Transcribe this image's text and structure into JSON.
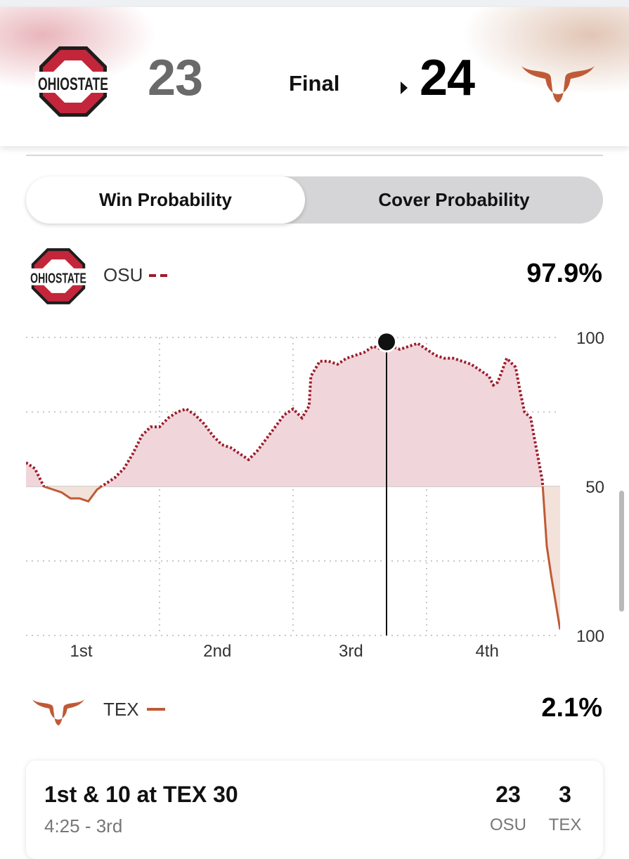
{
  "game": {
    "home": {
      "abbr": "OSU",
      "score": "23"
    },
    "away": {
      "abbr": "TEX",
      "score": "24"
    },
    "status": "Final"
  },
  "tabs": {
    "active": "Win Probability",
    "inactive": "Cover Probability"
  },
  "legend": {
    "top": {
      "abbr": "OSU",
      "pct": "97.9%",
      "color": "#9c1c2c"
    },
    "bottom": {
      "abbr": "TEX",
      "pct": "2.1%",
      "color": "#bf5a36"
    }
  },
  "chart_data": {
    "type": "line",
    "ylabels": [
      "100",
      "50",
      "100"
    ],
    "xlabels": [
      "1st",
      "2nd",
      "3rd",
      "4th"
    ],
    "ylim": [
      0,
      100
    ],
    "grid": true,
    "series": [
      {
        "name": "OSU",
        "values": [
          [
            0,
            58
          ],
          [
            1,
            56
          ],
          [
            2,
            50
          ],
          [
            3,
            49
          ],
          [
            4,
            48
          ],
          [
            5,
            46
          ],
          [
            6,
            46
          ],
          [
            7,
            45
          ],
          [
            8,
            49
          ],
          [
            9,
            51
          ],
          [
            10,
            53
          ],
          [
            11,
            56
          ],
          [
            12,
            61
          ],
          [
            13,
            67
          ],
          [
            14,
            70
          ],
          [
            15,
            70
          ],
          [
            16,
            73
          ],
          [
            17,
            75
          ],
          [
            18,
            76
          ],
          [
            19,
            74
          ],
          [
            20,
            71
          ],
          [
            21,
            67
          ],
          [
            22,
            64
          ],
          [
            23,
            63
          ],
          [
            24,
            61
          ],
          [
            25,
            59
          ],
          [
            26,
            62
          ],
          [
            27,
            66
          ],
          [
            28,
            70
          ],
          [
            29,
            74
          ],
          [
            30,
            76
          ],
          [
            31,
            73
          ],
          [
            31.8,
            77
          ],
          [
            32,
            87
          ],
          [
            33,
            92
          ],
          [
            34,
            92
          ],
          [
            35,
            91
          ],
          [
            36,
            93
          ],
          [
            37,
            94
          ],
          [
            38,
            95
          ],
          [
            39,
            97
          ],
          [
            40,
            96
          ],
          [
            41,
            97
          ],
          [
            42,
            96
          ],
          [
            43,
            97
          ],
          [
            44,
            98
          ],
          [
            45,
            96
          ],
          [
            46,
            94
          ],
          [
            47,
            93
          ],
          [
            48,
            93
          ],
          [
            49,
            92
          ],
          [
            50,
            91
          ],
          [
            51,
            89
          ],
          [
            52,
            87
          ],
          [
            52.5,
            84
          ],
          [
            53,
            85
          ],
          [
            54,
            93
          ],
          [
            55,
            90
          ],
          [
            55.5,
            82
          ],
          [
            56,
            75
          ],
          [
            56.7,
            73
          ],
          [
            57,
            68
          ],
          [
            58,
            52
          ],
          [
            58.5,
            30
          ],
          [
            59,
            20
          ],
          [
            60,
            2
          ]
        ],
        "color": "#9c1c2c"
      }
    ],
    "marker": {
      "x": 40.5,
      "y": 98.5,
      "label": "3rd"
    }
  },
  "play": {
    "down": "1st & 10 at TEX 30",
    "time": "4:25 - 3rd",
    "home_score": "23",
    "away_score": "3",
    "home_abbr": "OSU",
    "away_abbr": "TEX"
  }
}
